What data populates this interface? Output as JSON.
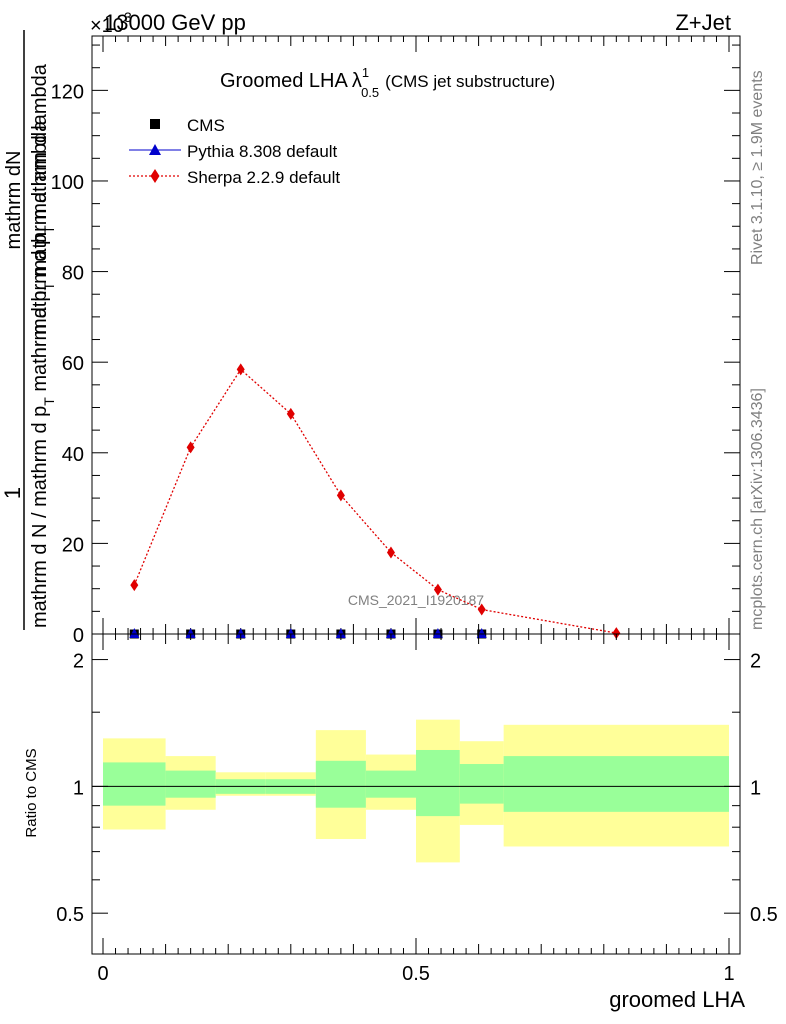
{
  "header": {
    "energy_label": "13000 GeV pp",
    "process_label": "Z+Jet",
    "exponent_label": "×10",
    "exponent_power": "3"
  },
  "side_labels": {
    "rivet": "Rivet 3.1.10, ≥ 1.9M events",
    "mcplots": "mcplots.cern.ch [arXiv:1306.3436]"
  },
  "analysis_id": "CMS_2021_I1920187",
  "chart_data": {
    "type": "line",
    "title": "Groomed LHA",
    "title_symbol": "λ",
    "title_sup": "1",
    "title_sub": "0.5",
    "subtitle": "(CMS jet substructure)",
    "xlabel": "groomed LHA",
    "ylabel": {
      "num_one": "1",
      "num_frac_top": "mathrm dN",
      "num_frac_bottom": "mathrm d p",
      "num_frac_bottom_sub": "T",
      "num_frac_bottom_tail": " mathrm d lambda",
      "den_left": "mathrm d N / mathrm d p",
      "den_left_sub": "T",
      "den_right": " mathrm d p",
      "den_right_sub": "T",
      "den_tail": " mathrm d lambda"
    },
    "xlim": [
      0,
      1
    ],
    "ylim": [
      0,
      132
    ],
    "y_multiplier": 1000,
    "x_ticks": [
      0,
      0.5,
      1
    ],
    "x_tick_labels": [
      "0",
      "0.5",
      "1"
    ],
    "y_ticks": [
      0,
      20,
      40,
      60,
      80,
      100,
      120
    ],
    "y_tick_labels": [
      "0",
      "20",
      "40",
      "60",
      "80",
      "100",
      "120"
    ],
    "legend_position": "top-left",
    "series": [
      {
        "name": "CMS",
        "marker": "square",
        "color": "#000000",
        "x": [
          0.05,
          0.14,
          0.22,
          0.3,
          0.38,
          0.46,
          0.535,
          0.605
        ],
        "values": [
          0,
          0,
          0,
          0,
          0,
          0,
          0,
          0
        ]
      },
      {
        "name": "Pythia 8.308 default",
        "marker": "triangle",
        "color": "#0000cc",
        "x": [
          0.05,
          0.14,
          0.22,
          0.3,
          0.38,
          0.46,
          0.535,
          0.605
        ],
        "values": [
          0,
          0,
          0,
          0,
          0,
          0,
          0,
          0
        ]
      },
      {
        "name": "Sherpa 2.2.9 default",
        "marker": "diamond",
        "color": "#e00000",
        "x": [
          0.05,
          0.14,
          0.22,
          0.3,
          0.38,
          0.46,
          0.535,
          0.605,
          0.82
        ],
        "values": [
          10.8,
          41.2,
          58.4,
          48.6,
          30.6,
          18.0,
          9.8,
          5.4,
          0.2
        ]
      }
    ],
    "ratio": {
      "ylabel": "Ratio to CMS",
      "ylim_log": [
        0.4,
        2.3
      ],
      "y_ticks": [
        0.5,
        1,
        2
      ],
      "y_tick_labels": [
        "0.5",
        "1",
        "2"
      ],
      "bins": [
        {
          "lo": 0.0,
          "hi": 0.1,
          "green": [
            0.9,
            1.14
          ],
          "yellow": [
            0.79,
            1.3
          ]
        },
        {
          "lo": 0.1,
          "hi": 0.18,
          "green": [
            0.94,
            1.09
          ],
          "yellow": [
            0.88,
            1.18
          ]
        },
        {
          "lo": 0.18,
          "hi": 0.26,
          "green": [
            0.96,
            1.04
          ],
          "yellow": [
            0.95,
            1.08
          ]
        },
        {
          "lo": 0.26,
          "hi": 0.34,
          "green": [
            0.96,
            1.04
          ],
          "yellow": [
            0.95,
            1.08
          ]
        },
        {
          "lo": 0.34,
          "hi": 0.42,
          "green": [
            0.89,
            1.15
          ],
          "yellow": [
            0.75,
            1.36
          ]
        },
        {
          "lo": 0.42,
          "hi": 0.5,
          "green": [
            0.94,
            1.09
          ],
          "yellow": [
            0.88,
            1.19
          ]
        },
        {
          "lo": 0.5,
          "hi": 0.57,
          "green": [
            0.85,
            1.22
          ],
          "yellow": [
            0.66,
            1.44
          ]
        },
        {
          "lo": 0.57,
          "hi": 0.64,
          "green": [
            0.91,
            1.13
          ],
          "yellow": [
            0.81,
            1.28
          ]
        },
        {
          "lo": 0.64,
          "hi": 1.0,
          "green": [
            0.87,
            1.18
          ],
          "yellow": [
            0.72,
            1.4
          ]
        }
      ],
      "green_color": "#99ff99",
      "yellow_color": "#ffff99"
    }
  }
}
